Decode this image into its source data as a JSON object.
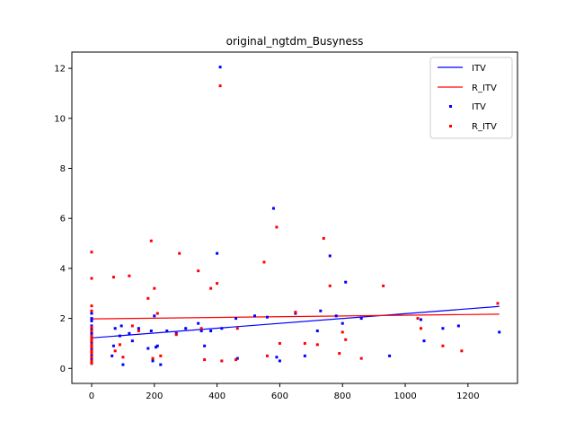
{
  "chart_data": {
    "type": "scatter",
    "title": "original_ngtdm_Busyness",
    "xlabel": "",
    "ylabel": "",
    "xlim": [
      -63,
      1358
    ],
    "ylim": [
      -0.6,
      12.65
    ],
    "x_ticks": [
      0,
      200,
      400,
      600,
      800,
      1000,
      1200
    ],
    "y_ticks": [
      0,
      2,
      4,
      6,
      8,
      10,
      12
    ],
    "grid": false,
    "legend_position": "top-right",
    "legend": [
      "ITV",
      "R_ITV",
      "ITV",
      "R_ITV"
    ],
    "colors": {
      "ITV": "#0000ff",
      "R_ITV": "#ff0000"
    },
    "series": [
      {
        "name": "ITV",
        "kind": "line",
        "color": "#0000ff",
        "x": [
          0,
          1300
        ],
        "y": [
          1.22,
          2.48
        ]
      },
      {
        "name": "R_ITV",
        "kind": "line",
        "color": "#ff0000",
        "x": [
          0,
          1300
        ],
        "y": [
          1.98,
          2.17
        ]
      },
      {
        "name": "ITV",
        "kind": "scatter",
        "color": "#0000ff",
        "x": [
          0,
          0,
          0,
          0,
          0,
          0,
          0,
          0,
          0,
          0,
          0,
          0,
          0,
          0,
          0,
          0,
          0,
          0,
          65,
          70,
          75,
          90,
          95,
          100,
          120,
          130,
          150,
          180,
          190,
          195,
          200,
          205,
          210,
          220,
          240,
          270,
          300,
          340,
          350,
          360,
          380,
          400,
          410,
          415,
          460,
          465,
          520,
          560,
          580,
          590,
          600,
          650,
          680,
          720,
          730,
          760,
          780,
          800,
          810,
          860,
          950,
          1050,
          1060,
          1120,
          1170,
          1300
        ],
        "y": [
          0.2,
          0.3,
          0.4,
          0.5,
          0.6,
          0.7,
          0.8,
          0.9,
          1.0,
          1.2,
          1.3,
          1.4,
          1.6,
          1.7,
          1.9,
          2.0,
          2.2,
          1.1,
          0.5,
          0.9,
          1.6,
          1.3,
          1.7,
          0.15,
          1.4,
          1.1,
          1.6,
          0.8,
          1.5,
          0.3,
          2.1,
          0.85,
          0.9,
          0.15,
          1.5,
          1.4,
          1.6,
          1.8,
          1.5,
          0.9,
          1.5,
          4.6,
          12.05,
          1.6,
          2.0,
          0.4,
          2.1,
          2.05,
          6.4,
          0.45,
          0.3,
          2.2,
          0.5,
          1.5,
          2.3,
          4.5,
          2.1,
          1.8,
          3.45,
          2.0,
          0.5,
          1.95,
          1.1,
          1.6,
          1.7,
          1.45
        ]
      },
      {
        "name": "R_ITV",
        "kind": "scatter",
        "color": "#ff0000",
        "x": [
          0,
          0,
          0,
          0,
          0,
          0,
          0,
          0,
          0,
          0,
          0,
          0,
          0,
          0,
          0,
          0,
          70,
          75,
          90,
          100,
          120,
          130,
          150,
          180,
          190,
          195,
          200,
          210,
          220,
          270,
          280,
          340,
          350,
          360,
          380,
          400,
          410,
          415,
          460,
          465,
          550,
          560,
          590,
          600,
          650,
          680,
          720,
          740,
          760,
          790,
          800,
          810,
          860,
          930,
          1040,
          1050,
          1120,
          1180,
          1295
        ],
        "y": [
          4.65,
          3.6,
          2.5,
          2.3,
          1.5,
          1.3,
          1.1,
          0.95,
          0.85,
          0.7,
          0.6,
          0.45,
          0.3,
          0.2,
          1.65,
          1.2,
          3.65,
          0.7,
          0.95,
          0.45,
          3.7,
          1.7,
          1.5,
          2.8,
          5.1,
          0.4,
          3.2,
          2.2,
          0.5,
          1.35,
          4.6,
          3.9,
          1.6,
          0.35,
          3.2,
          3.4,
          11.3,
          0.3,
          0.35,
          1.6,
          4.25,
          0.5,
          5.65,
          1.0,
          2.25,
          1.0,
          0.95,
          5.2,
          3.3,
          0.6,
          1.45,
          1.15,
          0.4,
          3.3,
          2.0,
          1.6,
          0.9,
          0.7,
          2.6
        ]
      }
    ]
  }
}
